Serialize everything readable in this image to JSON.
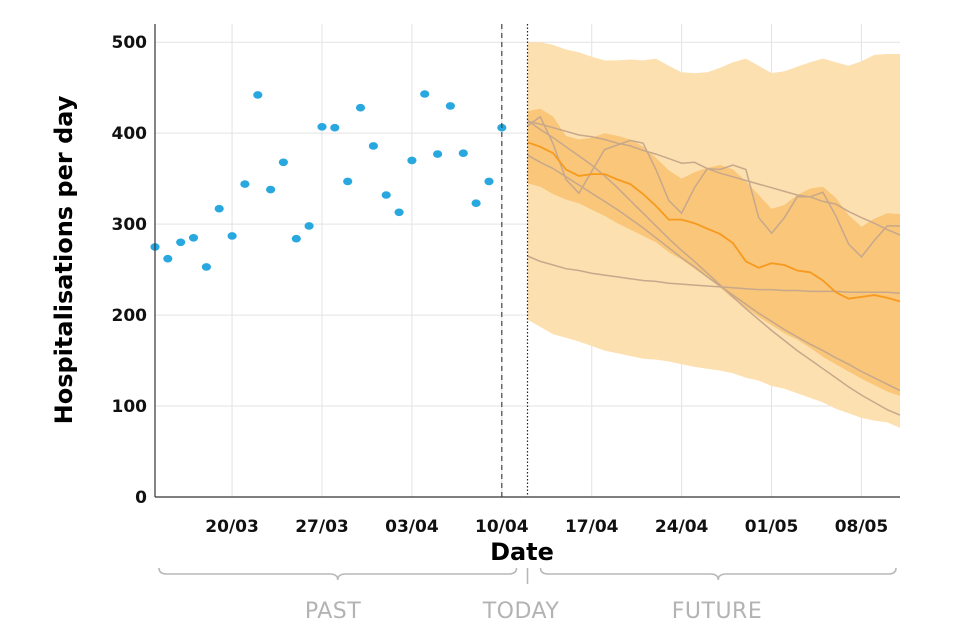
{
  "chart_data": {
    "type": "scatter",
    "xlabel": "Date",
    "ylabel": "Hospitalisations per day",
    "ylim": [
      0,
      520
    ],
    "yticks": [
      0,
      100,
      200,
      300,
      400,
      500
    ],
    "x_start": "14/03",
    "x_end": "11/05",
    "xticks": [
      {
        "date": "20/03",
        "label": "20/03"
      },
      {
        "date": "27/03",
        "label": "27/03"
      },
      {
        "date": "03/04",
        "label": "03/04"
      },
      {
        "date": "10/04",
        "label": "10/04"
      },
      {
        "date": "17/04",
        "label": "17/04"
      },
      {
        "date": "24/04",
        "label": "24/04"
      },
      {
        "date": "01/05",
        "label": "01/05"
      },
      {
        "date": "08/05",
        "label": "08/05"
      }
    ],
    "grid": true,
    "last_observed": "10/04",
    "today": "12/04",
    "past_label": "PAST",
    "today_label": "TODAY",
    "future_label": "FUTURE",
    "observed": {
      "color": "#29a8e0",
      "x": [
        "14/03",
        "15/03",
        "16/03",
        "17/03",
        "18/03",
        "19/03",
        "20/03",
        "21/03",
        "22/03",
        "23/03",
        "24/03",
        "25/03",
        "26/03",
        "27/03",
        "28/03",
        "29/03",
        "30/03",
        "31/03",
        "01/04",
        "02/04",
        "03/04",
        "04/04",
        "05/04",
        "06/04",
        "07/04",
        "08/04",
        "09/04",
        "10/04"
      ],
      "y": [
        275,
        262,
        280,
        285,
        253,
        317,
        287,
        344,
        442,
        338,
        368,
        284,
        298,
        407,
        406,
        347,
        428,
        386,
        332,
        313,
        370,
        443,
        377,
        430,
        378,
        323,
        347,
        406
      ]
    },
    "forecast": {
      "x": [
        "12/04",
        "13/04",
        "14/04",
        "15/04",
        "16/04",
        "17/04",
        "18/04",
        "19/04",
        "20/04",
        "21/04",
        "22/04",
        "23/04",
        "24/04",
        "25/04",
        "26/04",
        "27/04",
        "28/04",
        "29/04",
        "30/04",
        "01/05",
        "02/05",
        "03/05",
        "04/05",
        "05/05",
        "06/05",
        "07/05",
        "08/05",
        "09/05",
        "10/05",
        "11/05"
      ],
      "outer_band": {
        "color": "#fde0b0",
        "upper": [
          500,
          500,
          497,
          492,
          489,
          484,
          480,
          480,
          481,
          480,
          482,
          474,
          467,
          466,
          467,
          472,
          478,
          482,
          474,
          466,
          468,
          473,
          478,
          482,
          478,
          474,
          479,
          486,
          487,
          487
        ],
        "lower": [
          195,
          187,
          179,
          175,
          171,
          166,
          161,
          158,
          155,
          152,
          151,
          149,
          146,
          143,
          141,
          139,
          136,
          131,
          128,
          122,
          119,
          114,
          109,
          104,
          97,
          92,
          87,
          84,
          82,
          76
        ]
      },
      "inner_band": {
        "color": "#f9c67a",
        "upper": [
          424,
          427,
          418,
          397,
          393,
          395,
          400,
          397,
          393,
          385,
          373,
          359,
          350,
          357,
          362,
          365,
          360,
          347,
          332,
          317,
          321,
          332,
          339,
          341,
          329,
          310,
          297,
          306,
          312,
          311
        ],
        "lower": [
          345,
          341,
          333,
          327,
          323,
          316,
          309,
          301,
          294,
          287,
          280,
          269,
          261,
          251,
          241,
          230,
          218,
          208,
          198,
          189,
          180,
          173,
          164,
          154,
          146,
          138,
          130,
          123,
          116,
          111
        ]
      },
      "median": {
        "color": "#f79a1e",
        "values": [
          390,
          385,
          378,
          360,
          353,
          355,
          355,
          349,
          344,
          333,
          320,
          305,
          305,
          301,
          295,
          289,
          279,
          259,
          252,
          257,
          255,
          249,
          247,
          238,
          225,
          218,
          220,
          222,
          219,
          215
        ]
      },
      "scenarios": {
        "color": "#c7a88c",
        "lines": [
          [
            413,
            410,
            406,
            402,
            398,
            396,
            393,
            389,
            386,
            381,
            377,
            372,
            367,
            368,
            361,
            356,
            352,
            348,
            344,
            340,
            336,
            332,
            330,
            325,
            322,
            314,
            307,
            301,
            294,
            288
          ],
          [
            408,
            418,
            388,
            349,
            334,
            358,
            382,
            387,
            392,
            389,
            360,
            326,
            312,
            340,
            361,
            360,
            365,
            360,
            307,
            290,
            307,
            330,
            330,
            335,
            309,
            278,
            264,
            282,
            298,
            298
          ],
          [
            414,
            404,
            395,
            385,
            375,
            365,
            353,
            340,
            326,
            312,
            298,
            284,
            271,
            259,
            246,
            233,
            220,
            207,
            195,
            183,
            172,
            161,
            151,
            141,
            131,
            121,
            112,
            104,
            96,
            90
          ],
          [
            376,
            368,
            361,
            352,
            343,
            334,
            325,
            316,
            306,
            296,
            285,
            274,
            263,
            253,
            242,
            232,
            222,
            212,
            202,
            193,
            184,
            176,
            168,
            161,
            153,
            146,
            138,
            131,
            124,
            117
          ],
          [
            265,
            259,
            255,
            251,
            249,
            246,
            244,
            242,
            240,
            238,
            237,
            235,
            234,
            233,
            232,
            231,
            230,
            229,
            228,
            228,
            227,
            227,
            226,
            226,
            226,
            225,
            225,
            225,
            225,
            224
          ]
        ]
      }
    }
  }
}
